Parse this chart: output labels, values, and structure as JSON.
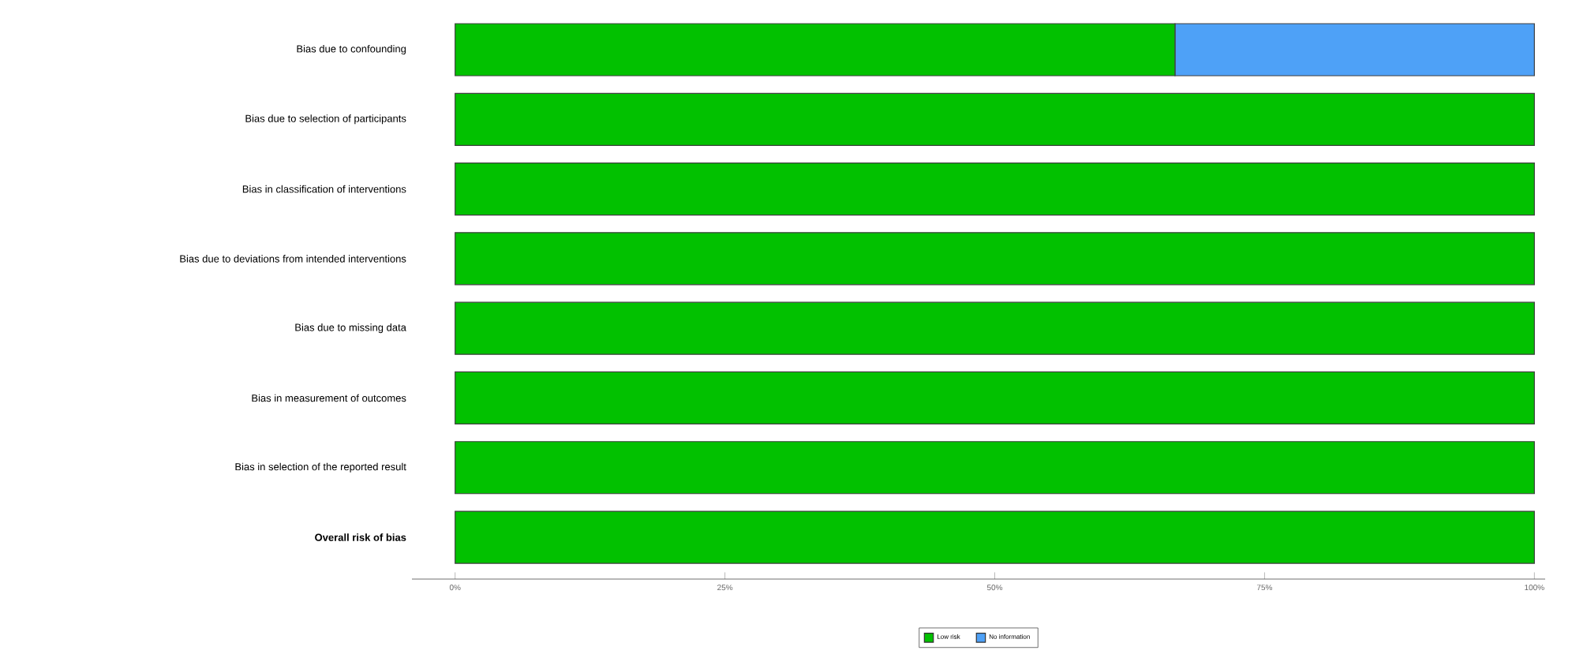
{
  "chart_data": {
    "type": "bar",
    "orientation": "horizontal",
    "stacked": true,
    "categories": [
      "Bias due to confounding",
      "Bias due to selection of participants",
      "Bias in classification of interventions",
      "Bias due to deviations from intended interventions",
      "Bias due to missing data",
      "Bias in measurement of outcomes",
      "Bias in selection of the reported result",
      "**Overall risk of bias**"
    ],
    "series": [
      {
        "name": "Low risk",
        "color": "#02c100",
        "values": [
          66.7,
          100,
          100,
          100,
          100,
          100,
          100,
          100
        ]
      },
      {
        "name": "No information",
        "color": "#4ea1f7",
        "values": [
          33.3,
          0,
          0,
          0,
          0,
          0,
          0,
          0
        ]
      }
    ],
    "xlim": [
      -4,
      101
    ],
    "xticks": [
      {
        "value": 0,
        "label": "0%"
      },
      {
        "value": 25,
        "label": "25%"
      },
      {
        "value": 50,
        "label": "50%"
      },
      {
        "value": 75,
        "label": "75%"
      },
      {
        "value": 100,
        "label": "100%"
      }
    ],
    "grid": false,
    "legend": "bottom"
  }
}
